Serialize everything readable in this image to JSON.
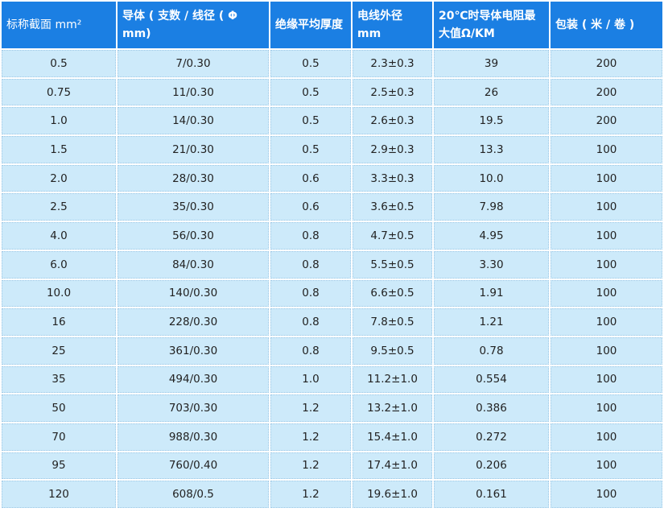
{
  "table": {
    "header": [
      "标称截面 mm²",
      "导体 ( 支数 / 线径 ( Φ mm)",
      "绝缘平均厚度",
      "电线外径 mm",
      "20℃时导体电阻最大值Ω/KM",
      "包装 ( 米 / 卷 )"
    ],
    "rows": [
      [
        "0.5",
        "7/0.30",
        "0.5",
        "2.3±0.3",
        "39",
        "200"
      ],
      [
        "0.75",
        "11/0.30",
        "0.5",
        "2.5±0.3",
        "26",
        "200"
      ],
      [
        "1.0",
        "14/0.30",
        "0.5",
        "2.6±0.3",
        "19.5",
        "200"
      ],
      [
        "1.5",
        "21/0.30",
        "0.5",
        "2.9±0.3",
        "13.3",
        "100"
      ],
      [
        "2.0",
        "28/0.30",
        "0.6",
        "3.3±0.3",
        "10.0",
        "100"
      ],
      [
        "2.5",
        "35/0.30",
        "0.6",
        "3.6±0.5",
        "7.98",
        "100"
      ],
      [
        "4.0",
        "56/0.30",
        "0.8",
        "4.7±0.5",
        "4.95",
        "100"
      ],
      [
        "6.0",
        "84/0.30",
        "0.8",
        "5.5±0.5",
        "3.30",
        "100"
      ],
      [
        "10.0",
        "140/0.30",
        "0.8",
        "6.6±0.5",
        "1.91",
        "100"
      ],
      [
        "16",
        "228/0.30",
        "0.8",
        "7.8±0.5",
        "1.21",
        "100"
      ],
      [
        "25",
        "361/0.30",
        "0.8",
        "9.5±0.5",
        "0.78",
        "100"
      ],
      [
        "35",
        "494/0.30",
        "1.0",
        "11.2±1.0",
        "0.554",
        "100"
      ],
      [
        "50",
        "703/0.30",
        "1.2",
        "13.2±1.0",
        "0.386",
        "100"
      ],
      [
        "70",
        "988/0.30",
        "1.2",
        "15.4±1.0",
        "0.272",
        "100"
      ],
      [
        "95",
        "760/0.40",
        "1.2",
        "17.4±1.0",
        "0.206",
        "100"
      ],
      [
        "120",
        "608/0.5",
        "1.2",
        "19.6±1.0",
        "0.161",
        "100"
      ]
    ]
  }
}
